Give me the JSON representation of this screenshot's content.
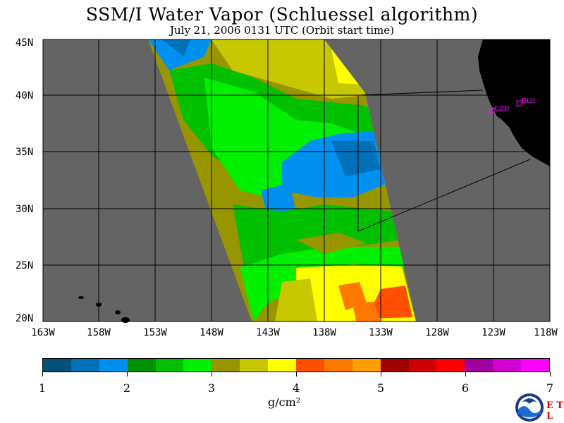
{
  "title": "SSM/I Water Vapor (Schluessel algorithm)",
  "subtitle": "July 21, 2006  0131 UTC  (Orbit start time)",
  "map": {
    "lat_labels": [
      "45N",
      "40N",
      "35N",
      "30N",
      "25N",
      "20N"
    ],
    "lon_labels": [
      "163W",
      "158W",
      "153W",
      "148W",
      "143W",
      "138W",
      "133W",
      "128W",
      "123W",
      "118W"
    ],
    "stations": [
      {
        "code": "CZD"
      },
      {
        "code": "BLU"
      }
    ],
    "colors": {
      "land": "#000000",
      "no_data": "#646464",
      "grid": "#000000"
    }
  },
  "colorbar": {
    "colors": [
      "#00507a",
      "#0070b8",
      "#0090f0",
      "#009000",
      "#00c000",
      "#00f000",
      "#989600",
      "#c8c800",
      "#ffff00",
      "#ff5000",
      "#ff7800",
      "#ffa000",
      "#a00000",
      "#d00000",
      "#ff0000",
      "#a000a0",
      "#d000d0",
      "#ff00ff"
    ],
    "tick_labels": [
      "1",
      "2",
      "3",
      "4",
      "5",
      "6",
      "7"
    ],
    "units": "g/cm²"
  },
  "logo": {
    "name": "NOAA",
    "corner_text": "E T L"
  }
}
